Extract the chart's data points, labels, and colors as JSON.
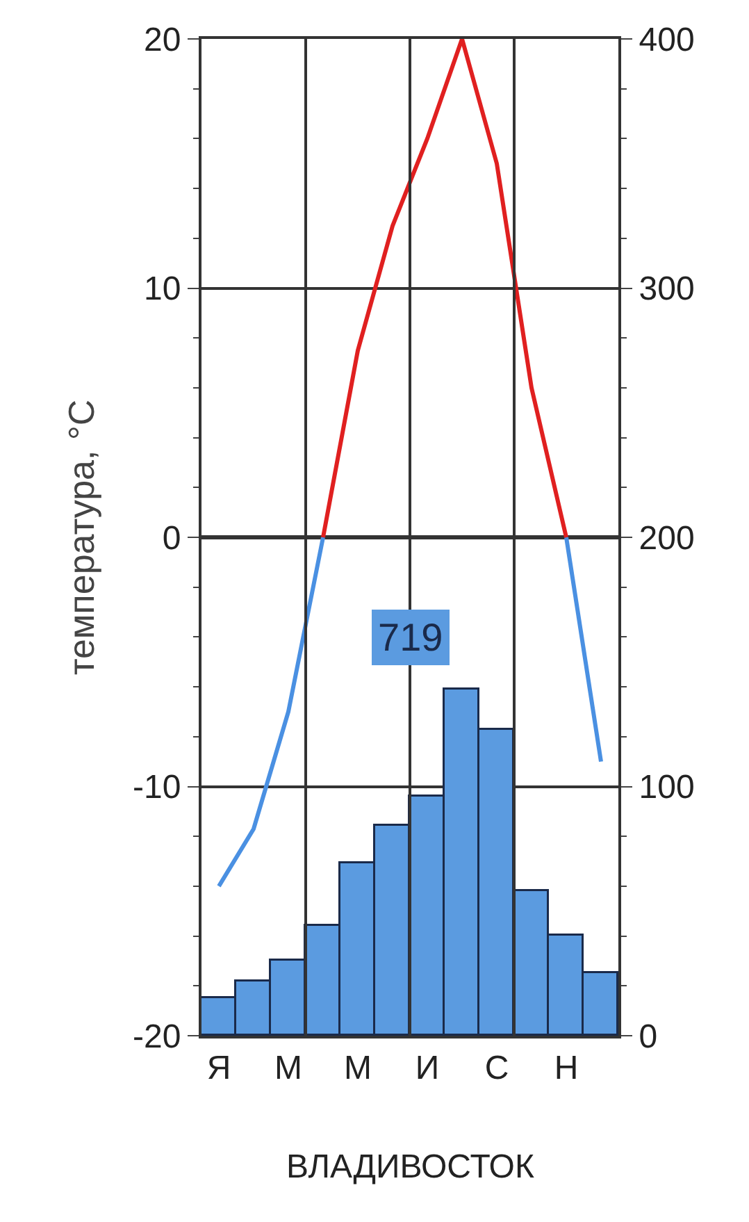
{
  "chart_data": {
    "type": "line",
    "title": "ВЛАДИВОСТОК",
    "ylabel": "температура, °С",
    "categories": [
      "Я",
      null,
      "М",
      null,
      "М",
      null,
      "И",
      null,
      "С",
      null,
      "Н",
      null
    ],
    "series": [
      {
        "type": "bar",
        "axis": "y2",
        "color": "#5b9be0",
        "values": [
          15,
          22,
          30,
          44,
          69,
          84,
          96,
          139,
          123,
          58,
          40,
          25
        ]
      },
      {
        "color": "#4a90e2",
        "values": [
          -14,
          -11.7,
          -7,
          0,
          null,
          null,
          null,
          null,
          null,
          null,
          0,
          -9
        ]
      },
      {
        "color": "#e02020",
        "values": [
          null,
          null,
          null,
          0,
          7.5,
          12.5,
          16,
          20,
          15,
          6,
          0,
          null
        ]
      }
    ],
    "ylim": [
      -20,
      20
    ],
    "yticks": [
      -20,
      -10,
      0,
      10,
      20
    ],
    "y2lim": [
      0,
      400
    ],
    "y2ticks": [
      0,
      100,
      200,
      300,
      400
    ],
    "annotations": [
      "719"
    ],
    "grid": true,
    "marker": "none",
    "line_style": "solid"
  }
}
